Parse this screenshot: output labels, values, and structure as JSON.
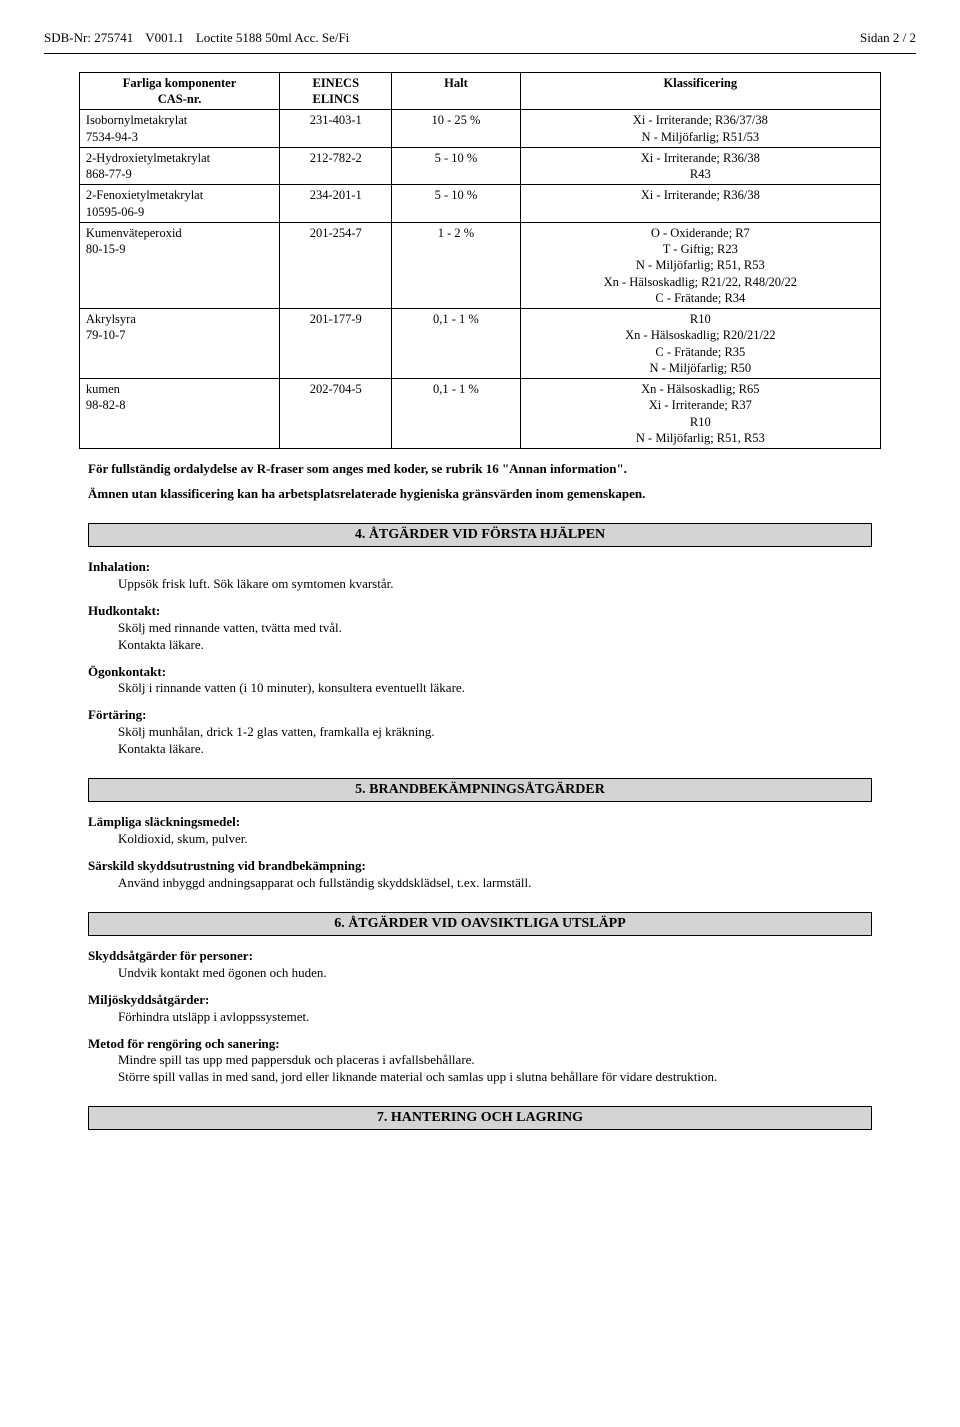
{
  "header": {
    "sdb": "SDB-Nr: 275741",
    "version": "V001.1",
    "product": "Loctite 5188 50ml Acc. Se/Fi",
    "page": "Sidan 2 / 2"
  },
  "table": {
    "headers": {
      "col1a": "Farliga komponenter",
      "col1b": "CAS-nr.",
      "col2a": "EINECS",
      "col2b": "ELINCS",
      "col3": "Halt",
      "col4": "Klassificering"
    },
    "rows": [
      {
        "name": "Isobornylmetakrylat",
        "cas": "7534-94-3",
        "einecs": "231-403-1",
        "halt": "10 -   25  %",
        "klass": [
          "Xi - Irriterande;  R36/37/38",
          "N - Miljöfarlig;  R51/53"
        ]
      },
      {
        "name": "2-Hydroxietylmetakrylat",
        "cas": "868-77-9",
        "einecs": "212-782-2",
        "halt": "5 -   10  %",
        "klass": [
          "Xi - Irriterande;  R36/38",
          "R43"
        ]
      },
      {
        "name": "2-Fenoxietylmetakrylat",
        "cas": "10595-06-9",
        "einecs": "234-201-1",
        "halt": "5 -   10  %",
        "klass": [
          "Xi - Irriterande;  R36/38"
        ]
      },
      {
        "name": "Kumenväteperoxid",
        "cas": "80-15-9",
        "einecs": "201-254-7",
        "halt": "1 -     2  %",
        "klass": [
          "O - Oxiderande;  R7",
          "T - Giftig;  R23",
          "N - Miljöfarlig;  R51, R53",
          "Xn - Hälsoskadlig;  R21/22, R48/20/22",
          "C - Frätande;  R34"
        ]
      },
      {
        "name": "Akrylsyra",
        "cas": "79-10-7",
        "einecs": "201-177-9",
        "halt": "0,1 -     1  %",
        "klass": [
          "R10",
          "Xn - Hälsoskadlig;  R20/21/22",
          "C - Frätande;  R35",
          "N - Miljöfarlig;  R50"
        ]
      },
      {
        "name": "kumen",
        "cas": "98-82-8",
        "einecs": "202-704-5",
        "halt": "0,1 -     1  %",
        "klass": [
          "Xn - Hälsoskadlig;  R65",
          "Xi - Irriterande;  R37",
          "R10",
          "N - Miljöfarlig;  R51, R53"
        ]
      }
    ]
  },
  "notes": {
    "n1": "För fullständig ordalydelse av  R-fraser som anges med koder, se rubrik 16 \"Annan information\".",
    "n2": "Ämnen utan klassificering kan ha arbetsplatsrelaterade hygieniska gränsvärden inom gemenskapen."
  },
  "sections": {
    "s4": {
      "title": "4. ÅTGÄRDER VID FÖRSTA HJÄLPEN",
      "blocks": [
        {
          "title": "Inhalation:",
          "lines": [
            "Uppsök frisk luft. Sök läkare om symtomen kvarstår."
          ]
        },
        {
          "title": "Hudkontakt:",
          "lines": [
            "Skölj med rinnande vatten, tvätta med tvål.",
            "Kontakta läkare."
          ]
        },
        {
          "title": "Ögonkontakt:",
          "lines": [
            "Skölj i rinnande vatten (i 10 minuter), konsultera eventuellt läkare."
          ]
        },
        {
          "title": "Förtäring:",
          "lines": [
            "Skölj munhålan, drick 1-2 glas vatten, framkalla ej kräkning.",
            "Kontakta läkare."
          ]
        }
      ]
    },
    "s5": {
      "title": "5. BRANDBEKÄMPNINGSÅTGÄRDER",
      "blocks": [
        {
          "title": "Lämpliga släckningsmedel:",
          "lines": [
            "Koldioxid, skum, pulver."
          ]
        },
        {
          "title": "Särskild skyddsutrustning vid brandbekämpning:",
          "lines": [
            "Använd inbyggd andningsapparat och fullständig skyddsklädsel, t.ex. larmställ."
          ]
        }
      ]
    },
    "s6": {
      "title": "6. ÅTGÄRDER VID OAVSIKTLIGA UTSLÄPP",
      "blocks": [
        {
          "title": "Skyddsåtgärder för personer:",
          "lines": [
            "Undvik kontakt med ögonen och huden."
          ]
        },
        {
          "title": "Miljöskyddsåtgärder:",
          "lines": [
            "Förhindra utsläpp i avloppssystemet."
          ]
        },
        {
          "title": "Metod för rengöring och sanering:",
          "lines": [
            "Mindre spill tas upp med pappersduk och placeras i avfallsbehållare.",
            "Större spill vallas in med sand, jord eller liknande material och samlas upp i slutna behållare för vidare destruktion."
          ]
        }
      ]
    },
    "s7": {
      "title": "7. HANTERING OCH LAGRING"
    }
  }
}
